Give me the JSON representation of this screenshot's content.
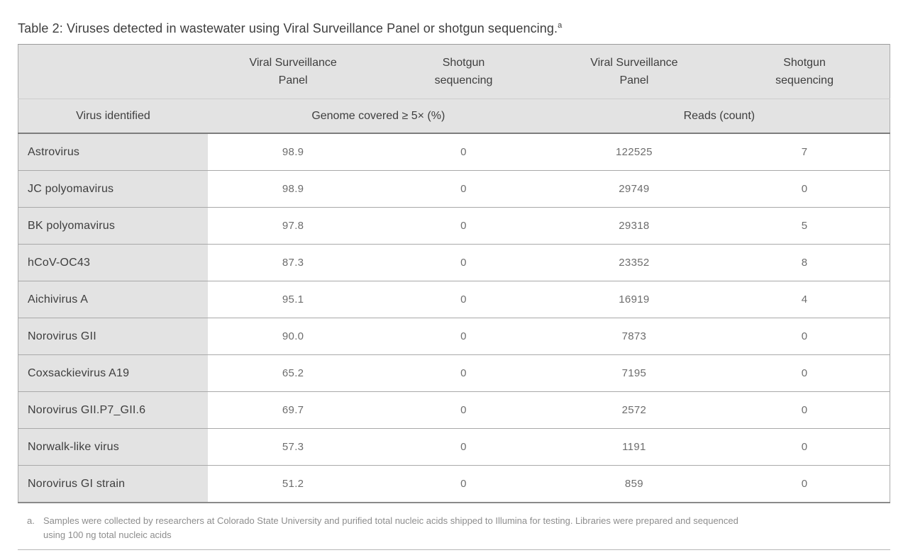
{
  "title": {
    "text": "Table 2: Viruses detected in wastewater using Viral Surveillance Panel or shotgun sequencing.",
    "superscript": "a"
  },
  "table": {
    "method_headers": [
      {
        "line1": "Viral Surveillance",
        "line2": "Panel"
      },
      {
        "line1": "Shotgun",
        "line2": "sequencing"
      },
      {
        "line1": "Viral Surveillance",
        "line2": "Panel"
      },
      {
        "line1": "Shotgun",
        "line2": "sequencing"
      }
    ],
    "group_headers": {
      "virus": "Virus identified",
      "coverage": "Genome covered ≥ 5× (%)",
      "reads": "Reads (count)"
    },
    "rows": [
      {
        "virus": "Astrovirus",
        "coverage_vsp": "98.9",
        "coverage_shotgun": "0",
        "reads_vsp": "122525",
        "reads_shotgun": "7"
      },
      {
        "virus": "JC polyomavirus",
        "coverage_vsp": "98.9",
        "coverage_shotgun": "0",
        "reads_vsp": "29749",
        "reads_shotgun": "0"
      },
      {
        "virus": "BK polyomavirus",
        "coverage_vsp": "97.8",
        "coverage_shotgun": "0",
        "reads_vsp": "29318",
        "reads_shotgun": "5"
      },
      {
        "virus": "hCoV-OC43",
        "coverage_vsp": "87.3",
        "coverage_shotgun": "0",
        "reads_vsp": "23352",
        "reads_shotgun": "8"
      },
      {
        "virus": "Aichivirus A",
        "coverage_vsp": "95.1",
        "coverage_shotgun": "0",
        "reads_vsp": "16919",
        "reads_shotgun": "4"
      },
      {
        "virus": "Norovirus GII",
        "coverage_vsp": "90.0",
        "coverage_shotgun": "0",
        "reads_vsp": "7873",
        "reads_shotgun": "0"
      },
      {
        "virus": "Coxsackievirus A19",
        "coverage_vsp": "65.2",
        "coverage_shotgun": "0",
        "reads_vsp": "7195",
        "reads_shotgun": "0"
      },
      {
        "virus": "Norovirus GII.P7_GII.6",
        "coverage_vsp": "69.7",
        "coverage_shotgun": "0",
        "reads_vsp": "2572",
        "reads_shotgun": "0"
      },
      {
        "virus": "Norwalk-like virus",
        "coverage_vsp": "57.3",
        "coverage_shotgun": "0",
        "reads_vsp": "1191",
        "reads_shotgun": "0"
      },
      {
        "virus": "Norovirus GI strain",
        "coverage_vsp": "51.2",
        "coverage_shotgun": "0",
        "reads_vsp": "859",
        "reads_shotgun": "0"
      }
    ]
  },
  "footnote": {
    "marker": "a.",
    "line1": "Samples were collected by researchers at Colorado State University and purified total nucleic acids shipped to Illumina for testing. Libraries were prepared and sequenced",
    "line2": "using 100 ng total nucleic acids"
  },
  "colors": {
    "header_bg": "#e3e3e3",
    "grid_line": "#a9a9a9",
    "strong_line": "#7d7d7d",
    "title_text": "#3e3e3e",
    "value_text": "#6d6d6d",
    "footnote_text": "#8d8d8d"
  }
}
